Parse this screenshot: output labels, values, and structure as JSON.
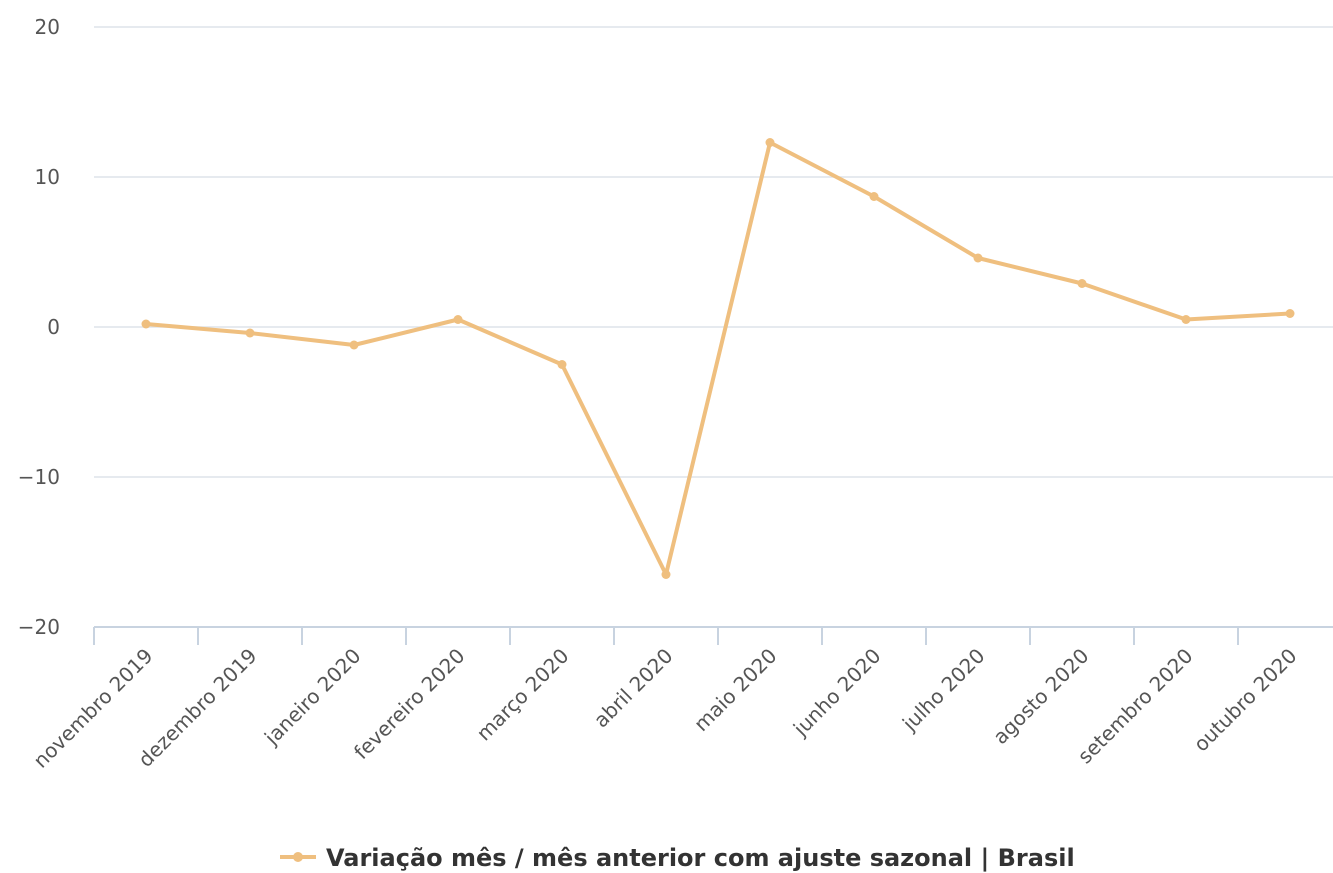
{
  "chart_data": {
    "type": "line",
    "categories": [
      "novembro 2019",
      "dezembro 2019",
      "janeiro 2020",
      "fevereiro 2020",
      "março 2020",
      "abril 2020",
      "maio 2020",
      "junho 2020",
      "julho 2020",
      "agosto 2020",
      "setembro 2020",
      "outubro 2020"
    ],
    "series": [
      {
        "name": "Variação mês / mês anterior com ajuste sazonal | Brasil",
        "color": "#efbf7f",
        "values": [
          0.2,
          -0.4,
          -1.2,
          0.5,
          -2.5,
          -16.5,
          12.3,
          8.7,
          4.6,
          2.9,
          0.5,
          0.9
        ]
      }
    ],
    "ylim": [
      -20,
      20
    ],
    "yticks": [
      {
        "value": -20,
        "label": "−20"
      },
      {
        "value": -10,
        "label": "−10"
      },
      0,
      10,
      20
    ],
    "grid": true
  }
}
